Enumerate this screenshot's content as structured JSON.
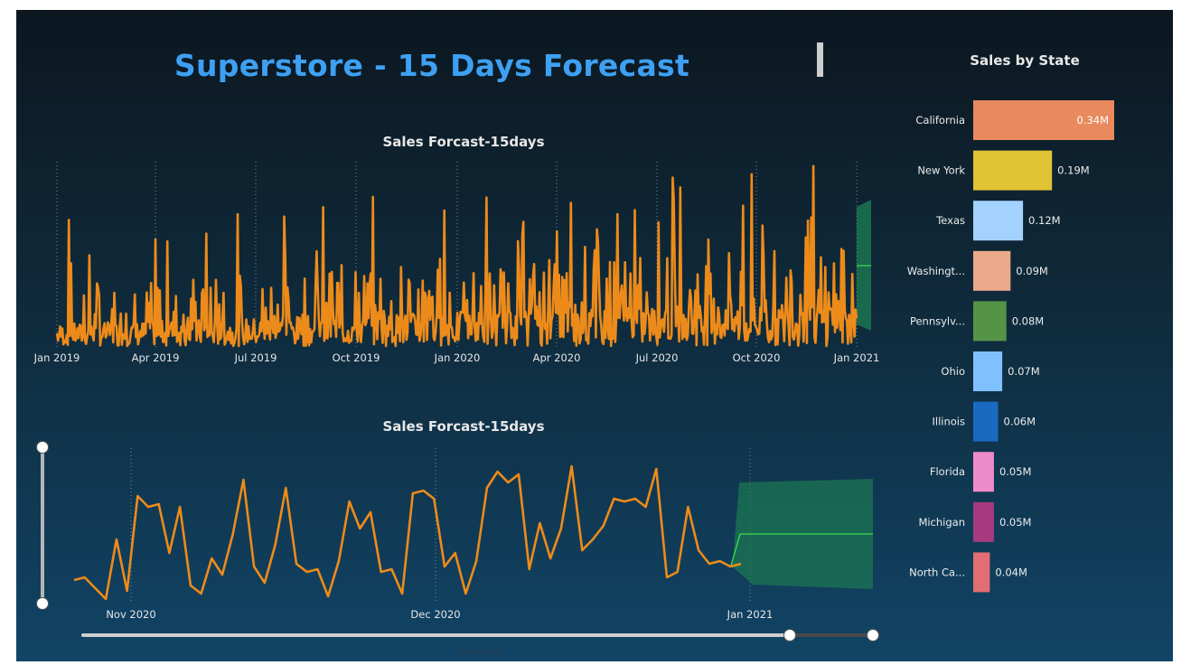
{
  "dashboard": {
    "title": "Superstore - 15 Days Forecast"
  },
  "top_chart": {
    "title": "Sales Forcast-15days",
    "xlabel": "Order Date",
    "ticks": [
      "Jan 2019",
      "Apr 2019",
      "Jul 2019",
      "Oct 2019",
      "Jan 2020",
      "Apr 2020",
      "Jul 2020",
      "Oct 2020",
      "Jan 2021"
    ]
  },
  "bottom_chart": {
    "title": "Sales Forcast-15days",
    "xlabel": "Order Date",
    "ticks": [
      "Nov 2020",
      "Dec 2020",
      "Jan 2021"
    ]
  },
  "state_chart": {
    "title": "Sales by State",
    "states": [
      {
        "name": "California",
        "value": 0.34,
        "label": "0.34M",
        "color": "#e88a5e"
      },
      {
        "name": "New York",
        "value": 0.19,
        "label": "0.19M",
        "color": "#e0c234"
      },
      {
        "name": "Texas",
        "value": 0.12,
        "label": "0.12M",
        "color": "#a3d2ff"
      },
      {
        "name": "Washingt...",
        "value": 0.09,
        "label": "0.09M",
        "color": "#eca98a"
      },
      {
        "name": "Pennsylv...",
        "value": 0.08,
        "label": "0.08M",
        "color": "#559447"
      },
      {
        "name": "Ohio",
        "value": 0.07,
        "label": "0.07M",
        "color": "#7fc1ff"
      },
      {
        "name": "Illinois",
        "value": 0.06,
        "label": "0.06M",
        "color": "#1a6ac2"
      },
      {
        "name": "Florida",
        "value": 0.05,
        "label": "0.05M",
        "color": "#ee8ccb"
      },
      {
        "name": "Michigan",
        "value": 0.05,
        "label": "0.05M",
        "color": "#a73b80"
      },
      {
        "name": "North Ca...",
        "value": 0.04,
        "label": "0.04M",
        "color": "#e06e72"
      }
    ]
  },
  "chart_data": [
    {
      "type": "line",
      "title": "Sales Forcast-15days",
      "xlabel": "Order Date",
      "x_range": [
        "2019-01-01",
        "2021-01-15"
      ],
      "series": [],
      "forecast_band": true
    },
    {
      "type": "line",
      "title": "Sales Forcast-15days",
      "xlabel": "Order Date",
      "x": [
        "2020-10-21",
        "2020-10-22",
        "2020-10-24",
        "2020-10-26",
        "2020-10-27",
        "2020-10-29",
        "2020-10-31",
        "2020-11-01",
        "2020-11-02",
        "2020-11-03",
        "2020-11-04",
        "2020-11-05",
        "2020-11-07",
        "2020-11-08",
        "2020-11-09",
        "2020-11-10",
        "2020-11-12",
        "2020-11-13",
        "2020-11-14",
        "2020-11-15",
        "2020-11-16",
        "2020-11-17",
        "2020-11-18",
        "2020-11-19",
        "2020-11-20",
        "2020-11-21",
        "2020-11-22",
        "2020-11-23",
        "2020-11-24",
        "2020-11-25",
        "2020-11-26",
        "2020-11-28",
        "2020-11-29",
        "2020-11-30",
        "2020-12-01",
        "2020-12-02",
        "2020-12-03",
        "2020-12-04",
        "2020-12-05",
        "2020-12-06",
        "2020-12-07",
        "2020-12-08",
        "2020-12-09",
        "2020-12-11",
        "2020-12-12",
        "2020-12-13",
        "2020-12-14",
        "2020-12-15",
        "2020-12-16",
        "2020-12-17",
        "2020-12-18",
        "2020-12-19",
        "2020-12-20",
        "2020-12-21",
        "2020-12-22",
        "2020-12-23",
        "2020-12-24",
        "2020-12-25",
        "2020-12-26",
        "2020-12-27",
        "2020-12-28",
        "2020-12-29",
        "2020-12-30",
        "2020-12-31"
      ],
      "series": [
        {
          "values": [
            1.3,
            1.4,
            1.0,
            0.6,
            2.8,
            0.9,
            4.4,
            4.0,
            4.1,
            2.3,
            4.0,
            1.1,
            0.8,
            2.1,
            1.5,
            3.0,
            5.0,
            1.8,
            1.2,
            2.6,
            4.7,
            1.9,
            1.6,
            1.7,
            0.7,
            2.0,
            4.2,
            3.2,
            3.8,
            1.6,
            1.7,
            0.8,
            4.5,
            4.6,
            4.3,
            1.8,
            2.3,
            0.8,
            2.0,
            4.7,
            5.3,
            4.9,
            5.2,
            1.7,
            3.4,
            2.1,
            3.2,
            5.5,
            2.4,
            2.8,
            3.3,
            4.3,
            4.2,
            4.3,
            4.0,
            5.4,
            1.4,
            1.6,
            4.0,
            2.4,
            1.9,
            2.0,
            1.8,
            1.9
          ]
        }
      ],
      "forecast_band": true
    }
  ]
}
